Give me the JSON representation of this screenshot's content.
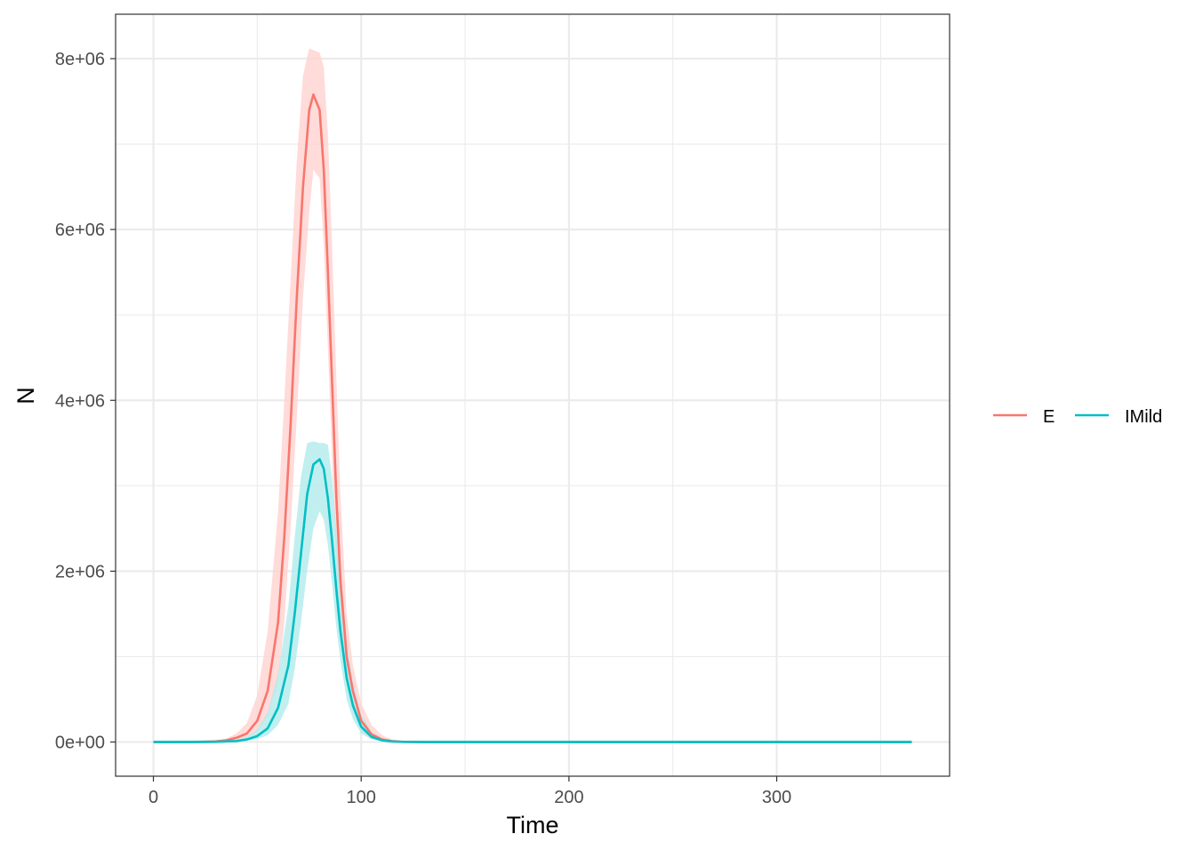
{
  "chart_data": {
    "type": "line",
    "title": "",
    "xlabel": "Time",
    "ylabel": "N",
    "xlim": [
      -18.2,
      383.2
    ],
    "ylim": [
      -400000,
      8520000
    ],
    "x_ticks": [
      0,
      100,
      200,
      300
    ],
    "x_tick_labels": [
      "0",
      "100",
      "200",
      "300"
    ],
    "y_ticks": [
      0,
      2000000,
      4000000,
      6000000,
      8000000
    ],
    "y_tick_labels": [
      "0e+00",
      "2e+06",
      "4e+06",
      "6e+06",
      "8e+06"
    ],
    "grid": true,
    "legend_position": "right",
    "series": [
      {
        "name": "E",
        "color": "#F8766D",
        "band_color": "#FFD2CF",
        "x": [
          0,
          10,
          20,
          30,
          35,
          40,
          45,
          50,
          55,
          60,
          63,
          66,
          69,
          72,
          75,
          77,
          80,
          82,
          84,
          86,
          88,
          90,
          93,
          96,
          100,
          105,
          110,
          115,
          120,
          130,
          140,
          160,
          200,
          250,
          300,
          365
        ],
        "y": [
          0,
          0,
          2000,
          8000,
          20000,
          50000,
          100000,
          250000,
          600000,
          1400000,
          2400000,
          3700000,
          5200000,
          6500000,
          7400000,
          7580000,
          7400000,
          6700000,
          5500000,
          4200000,
          2900000,
          1900000,
          1000000,
          600000,
          250000,
          90000,
          30000,
          10000,
          3000,
          500,
          100,
          0,
          0,
          0,
          0,
          0
        ],
        "lower": [
          0,
          0,
          1000,
          4000,
          10000,
          25000,
          50000,
          120000,
          300000,
          700000,
          1400000,
          2500000,
          3800000,
          5200000,
          6200000,
          6700000,
          6600000,
          5800000,
          4600000,
          3300000,
          2100000,
          1300000,
          650000,
          350000,
          130000,
          40000,
          12000,
          4000,
          1000,
          200,
          0,
          0,
          0,
          0,
          0,
          0
        ],
        "upper": [
          0,
          0,
          4000,
          15000,
          40000,
          100000,
          220000,
          550000,
          1300000,
          2700000,
          4000000,
          5400000,
          6800000,
          7800000,
          8120000,
          8100000,
          8070000,
          7900000,
          7100000,
          5800000,
          4300000,
          2900000,
          1500000,
          900000,
          450000,
          200000,
          80000,
          30000,
          10000,
          1500,
          300,
          0,
          0,
          0,
          0,
          0
        ]
      },
      {
        "name": "IMild",
        "color": "#00BFC4",
        "band_color": "#B2EBEC",
        "x": [
          0,
          10,
          20,
          30,
          40,
          45,
          50,
          55,
          60,
          65,
          68,
          71,
          74,
          77,
          80,
          82,
          84,
          86,
          88,
          90,
          93,
          96,
          100,
          105,
          110,
          115,
          120,
          130,
          140,
          160,
          200,
          250,
          300,
          365
        ],
        "y": [
          0,
          0,
          500,
          3000,
          12000,
          30000,
          70000,
          160000,
          400000,
          900000,
          1500000,
          2200000,
          2900000,
          3250000,
          3310000,
          3200000,
          2850000,
          2350000,
          1800000,
          1300000,
          750000,
          430000,
          180000,
          60000,
          20000,
          6000,
          2000,
          300,
          50,
          0,
          0,
          0,
          0,
          0
        ],
        "lower": [
          0,
          0,
          200,
          1500,
          6000,
          15000,
          35000,
          80000,
          200000,
          450000,
          850000,
          1400000,
          2000000,
          2500000,
          2700000,
          2600000,
          2300000,
          1850000,
          1350000,
          950000,
          500000,
          270000,
          100000,
          30000,
          10000,
          3000,
          800,
          100,
          0,
          0,
          0,
          0,
          0,
          0
        ],
        "upper": [
          0,
          0,
          1000,
          6000,
          25000,
          60000,
          150000,
          350000,
          800000,
          1600000,
          2400000,
          3100000,
          3500000,
          3520000,
          3500000,
          3500000,
          3480000,
          3100000,
          2450000,
          1850000,
          1150000,
          700000,
          320000,
          120000,
          40000,
          12000,
          4000,
          600,
          100,
          0,
          0,
          0,
          0,
          0
        ]
      }
    ]
  }
}
